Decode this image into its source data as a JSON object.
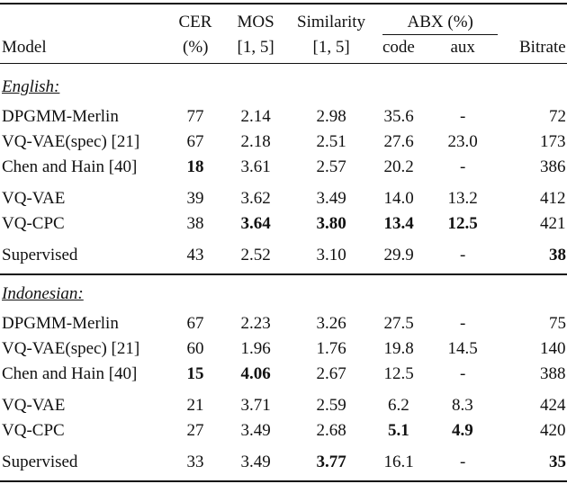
{
  "header": {
    "row1": [
      "CER",
      "MOS",
      "Similarity"
    ],
    "abx": "ABX (%)",
    "row2": [
      "Model",
      "(%)",
      "[1, 5]",
      "[1, 5]",
      "code",
      "aux",
      "Bitrate"
    ]
  },
  "sections": [
    {
      "title": "English:",
      "groups": [
        [
          {
            "cells": [
              "DPGMM-Merlin",
              "77",
              "2.14",
              "2.98",
              "35.6",
              "-",
              "72"
            ],
            "bold": []
          },
          {
            "cells": [
              "VQ-VAE(spec) [21]",
              "67",
              "2.18",
              "2.51",
              "27.6",
              "23.0",
              "173"
            ],
            "bold": []
          },
          {
            "cells": [
              "Chen and Hain [40]",
              "18",
              "3.61",
              "2.57",
              "20.2",
              "-",
              "386"
            ],
            "bold": [
              1
            ]
          }
        ],
        [
          {
            "cells": [
              "VQ-VAE",
              "39",
              "3.62",
              "3.49",
              "14.0",
              "13.2",
              "412"
            ],
            "bold": []
          },
          {
            "cells": [
              "VQ-CPC",
              "38",
              "3.64",
              "3.80",
              "13.4",
              "12.5",
              "421"
            ],
            "bold": [
              2,
              3,
              4,
              5
            ]
          }
        ],
        [
          {
            "cells": [
              "Supervised",
              "43",
              "2.52",
              "3.10",
              "29.9",
              "-",
              "38"
            ],
            "bold": [
              6
            ]
          }
        ]
      ]
    },
    {
      "title": "Indonesian:",
      "groups": [
        [
          {
            "cells": [
              "DPGMM-Merlin",
              "67",
              "2.23",
              "3.26",
              "27.5",
              "-",
              "75"
            ],
            "bold": []
          },
          {
            "cells": [
              "VQ-VAE(spec) [21]",
              "60",
              "1.96",
              "1.76",
              "19.8",
              "14.5",
              "140"
            ],
            "bold": []
          },
          {
            "cells": [
              "Chen and Hain [40]",
              "15",
              "4.06",
              "2.67",
              "12.5",
              "-",
              "388"
            ],
            "bold": [
              1,
              2
            ]
          }
        ],
        [
          {
            "cells": [
              "VQ-VAE",
              "21",
              "3.71",
              "2.59",
              "6.2",
              "8.3",
              "424"
            ],
            "bold": []
          },
          {
            "cells": [
              "VQ-CPC",
              "27",
              "3.49",
              "2.68",
              "5.1",
              "4.9",
              "420"
            ],
            "bold": [
              4,
              5
            ]
          }
        ],
        [
          {
            "cells": [
              "Supervised",
              "33",
              "3.49",
              "3.77",
              "16.1",
              "-",
              "35"
            ],
            "bold": [
              3,
              6
            ]
          }
        ]
      ]
    }
  ]
}
